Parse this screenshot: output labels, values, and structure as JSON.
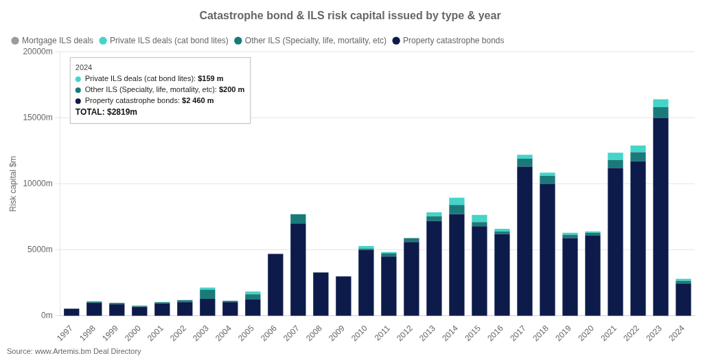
{
  "chart_data": {
    "type": "bar",
    "title": "Catastrophe bond & ILS risk capital issued by type & year",
    "ylabel": "Risk capital $m",
    "source": "Source: www.Artemis.bm Deal Directory",
    "categories": [
      "1997",
      "1998",
      "1999",
      "2000",
      "2001",
      "2002",
      "2003",
      "2004",
      "2005",
      "2006",
      "2007",
      "2008",
      "2009",
      "2010",
      "2011",
      "2012",
      "2013",
      "2014",
      "2015",
      "2016",
      "2017",
      "2018",
      "2019",
      "2020",
      "2021",
      "2022",
      "2023",
      "2024"
    ],
    "series": [
      {
        "name": "Property catastrophe bonds",
        "color": "#0d1b4b",
        "values": [
          550,
          1000,
          900,
          700,
          950,
          1050,
          1300,
          1050,
          1250,
          4700,
          7000,
          3300,
          3000,
          5000,
          4500,
          5600,
          7200,
          7700,
          6800,
          6200,
          11300,
          10000,
          5900,
          6100,
          11200,
          11700,
          15000,
          2460
        ]
      },
      {
        "name": "Other ILS (Specialty, life, mortality, etc)",
        "color": "#1a7a7a",
        "values": [
          0,
          100,
          100,
          50,
          100,
          150,
          700,
          100,
          400,
          0,
          700,
          0,
          0,
          100,
          250,
          300,
          350,
          700,
          300,
          200,
          600,
          600,
          250,
          200,
          600,
          700,
          800,
          200
        ]
      },
      {
        "name": "Private ILS deals (cat bond lites)",
        "color": "#45d4c8",
        "values": [
          0,
          0,
          0,
          50,
          0,
          0,
          150,
          0,
          200,
          0,
          0,
          0,
          0,
          200,
          100,
          0,
          300,
          550,
          550,
          200,
          300,
          250,
          150,
          100,
          550,
          500,
          600,
          159
        ]
      },
      {
        "name": "Mortgage ILS deals",
        "color": "#9b9b9b",
        "values": [
          null,
          null,
          null,
          null,
          null,
          null,
          null,
          null,
          null,
          null,
          null,
          null,
          null,
          null,
          null,
          null,
          null,
          null,
          null,
          null,
          null,
          null,
          null,
          null,
          null,
          null,
          null,
          null
        ]
      }
    ],
    "stacked": true,
    "ylim": [
      0,
      20000
    ],
    "yticks": [
      {
        "value": 0,
        "label": "0m"
      },
      {
        "value": 5000,
        "label": "5000m"
      },
      {
        "value": 10000,
        "label": "10000m"
      },
      {
        "value": 15000,
        "label": "15000m"
      },
      {
        "value": 20000,
        "label": "20000m"
      }
    ],
    "grid": "y",
    "legend": "upper left",
    "annotations": [
      {
        "title": "2024",
        "rows": [
          {
            "label": "Private ILS deals (cat bond lites): ",
            "text": "$159 m",
            "color": "#45d4c8"
          },
          {
            "label": "Other ILS (Specialty, life, mortality, etc): ",
            "text": "$200 m",
            "color": "#1a7a7a"
          },
          {
            "label": "Property catastrophe bonds: ",
            "text": "$2 460 m",
            "color": "#0d1b4b"
          }
        ],
        "total": "TOTAL: $2819m"
      }
    ]
  }
}
